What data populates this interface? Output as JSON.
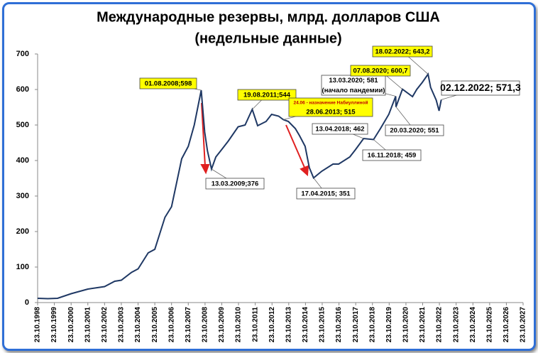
{
  "chart_data": {
    "type": "line",
    "title": "Международные резервы, млрд. долларов США",
    "subtitle": "(недельные данные)",
    "color": "#1f3864",
    "x": [
      "1998-10-23",
      "1999-06-01",
      "2000-01-01",
      "2000-10-23",
      "2001-10-23",
      "2002-10-23",
      "2003-06-01",
      "2003-10-23",
      "2004-06-01",
      "2004-10-23",
      "2005-06-01",
      "2005-10-23",
      "2006-06-01",
      "2006-10-23",
      "2007-06-01",
      "2007-10-23",
      "2008-03-01",
      "2008-08-01",
      "2008-10-15",
      "2008-12-15",
      "2009-03-13",
      "2009-06-15",
      "2009-10-15",
      "2010-03-15",
      "2010-10-15",
      "2011-03-15",
      "2011-08-19",
      "2011-12-15",
      "2012-06-15",
      "2012-10-15",
      "2013-03-15",
      "2013-06-28",
      "2013-10-15",
      "2014-03-15",
      "2014-06-15",
      "2014-10-15",
      "2015-01-15",
      "2015-04-17",
      "2015-10-15",
      "2016-06-15",
      "2016-10-15",
      "2017-06-15",
      "2017-10-15",
      "2018-04-13",
      "2018-11-16",
      "2019-04-15",
      "2019-10-15",
      "2020-03-13",
      "2020-03-20",
      "2020-08-07",
      "2021-03-15",
      "2021-06-15",
      "2021-10-15",
      "2022-02-18",
      "2022-04-15",
      "2022-08-15",
      "2022-10-15",
      "2022-12-02"
    ],
    "values": [
      12,
      11,
      12,
      25,
      38,
      45,
      60,
      63,
      85,
      95,
      140,
      150,
      240,
      270,
      405,
      440,
      500,
      598,
      480,
      427,
      376,
      410,
      430,
      455,
      495,
      500,
      544,
      498,
      510,
      530,
      525,
      515,
      510,
      490,
      470,
      440,
      380,
      351,
      370,
      390,
      390,
      410,
      430,
      462,
      459,
      490,
      530,
      581,
      551,
      600.7,
      580,
      600,
      620,
      643.2,
      606,
      570,
      540,
      571.3
    ],
    "xlim": [
      "1998-10-23",
      "2027-10-23"
    ],
    "xticks": [
      {
        "value": "1998-10-23",
        "label": "23.10.1998"
      },
      {
        "value": "1999-10-23",
        "label": "23.10.1999"
      },
      {
        "value": "2000-10-23",
        "label": "23.10.2000"
      },
      {
        "value": "2001-10-23",
        "label": "23.10.2001"
      },
      {
        "value": "2002-10-23",
        "label": "23.10.2002"
      },
      {
        "value": "2003-10-23",
        "label": "23.10.2003"
      },
      {
        "value": "2004-10-23",
        "label": "23.10.2004"
      },
      {
        "value": "2005-10-23",
        "label": "23.10.2005"
      },
      {
        "value": "2006-10-23",
        "label": "23.10.2006"
      },
      {
        "value": "2007-10-23",
        "label": "23.10.2007"
      },
      {
        "value": "2008-10-23",
        "label": "23.10.2008"
      },
      {
        "value": "2009-10-23",
        "label": "23.10.2009"
      },
      {
        "value": "2010-10-23",
        "label": "23.10.2010"
      },
      {
        "value": "2011-10-23",
        "label": "23.10.2011"
      },
      {
        "value": "2012-10-23",
        "label": "23.10.2012"
      },
      {
        "value": "2013-10-23",
        "label": "23.10.2013"
      },
      {
        "value": "2014-10-23",
        "label": "23.10.2014"
      },
      {
        "value": "2015-10-23",
        "label": "23.10.2015"
      },
      {
        "value": "2016-10-23",
        "label": "23.10.2016"
      },
      {
        "value": "2017-10-23",
        "label": "23.10.2017"
      },
      {
        "value": "2018-10-23",
        "label": "23.10.2018"
      },
      {
        "value": "2019-10-23",
        "label": "23.10.2019"
      },
      {
        "value": "2020-10-23",
        "label": "23.10.2020"
      },
      {
        "value": "2021-10-23",
        "label": "23.10.2021"
      },
      {
        "value": "2022-10-23",
        "label": "23.10.2022"
      },
      {
        "value": "2023-10-23",
        "label": "23.10.2023"
      },
      {
        "value": "2024-10-23",
        "label": "23.10.2024"
      },
      {
        "value": "2025-10-23",
        "label": "23.10.2025"
      },
      {
        "value": "2026-10-23",
        "label": "23.10.2026"
      },
      {
        "value": "2027-10-23",
        "label": "23.10.2027"
      }
    ],
    "ylim": [
      0,
      700
    ],
    "yticks": [
      0,
      100,
      200,
      300,
      400,
      500,
      600,
      700
    ],
    "annotations": [
      {
        "x": "2008-08-01",
        "y": 598,
        "lines": [
          "01.08.2008;598"
        ],
        "style": "yellow"
      },
      {
        "x": "2009-03-13",
        "y": 376,
        "lines": [
          "13.03.2009;376"
        ],
        "style": "white"
      },
      {
        "x": "2011-08-19",
        "y": 544,
        "lines": [
          "19.08.2011;544"
        ],
        "style": "yellow"
      },
      {
        "x": "2013-06-28",
        "y": 515,
        "lines": [
          "24.06 - назначение Набиуллиной",
          "28.06.2013; 515"
        ],
        "style": "yellow"
      },
      {
        "x": "2015-04-17",
        "y": 351,
        "lines": [
          "17.04.2015; 351"
        ],
        "style": "white"
      },
      {
        "x": "2018-04-13",
        "y": 462,
        "lines": [
          "13.04.2018; 462"
        ],
        "style": "white"
      },
      {
        "x": "2018-11-16",
        "y": 459,
        "lines": [
          "16.11.2018; 459"
        ],
        "style": "white"
      },
      {
        "x": "2020-03-13",
        "y": 581,
        "lines": [
          "13.03.2020; 581",
          "(начало пандемии)"
        ],
        "style": "white"
      },
      {
        "x": "2020-03-20",
        "y": 551,
        "lines": [
          "20.03.2020; 551"
        ],
        "style": "white"
      },
      {
        "x": "2020-08-07",
        "y": 600.7,
        "lines": [
          "07.08.2020; 600,7"
        ],
        "style": "yellow"
      },
      {
        "x": "2022-02-18",
        "y": 643.2,
        "lines": [
          "18.02.2022; 643,2"
        ],
        "style": "yellow"
      },
      {
        "x": "2022-12-02",
        "y": 571.3,
        "lines": [
          "02.12.2022; 571,3"
        ],
        "style": "white"
      }
    ]
  }
}
